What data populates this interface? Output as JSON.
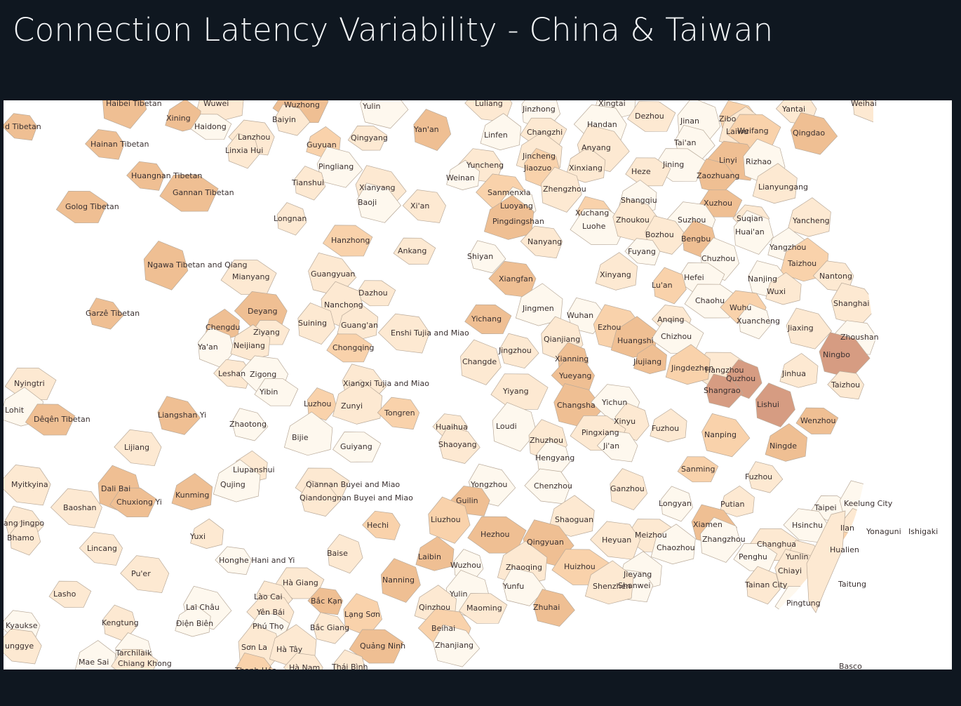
{
  "header": {
    "title": "Connection Latency Variability - China & Taiwan"
  },
  "map": {
    "colors": {
      "sea": "#ffffff",
      "none": "#fef8ee",
      "low": "#fde9d2",
      "mid": "#f9d2ab",
      "high": "#efbf93",
      "max": "#d69c82",
      "border": "#b9aa9a"
    },
    "labels": [
      "d Tibetan",
      "Haibei Tibetan",
      "Wuwei",
      "Wuzhong",
      "Yulin",
      "Luliang",
      "Jinzhong",
      "Xingtai",
      "Dezhou",
      "Zibo",
      "Yantai",
      "Weihai",
      "Xining",
      "Haidong",
      "Baiyin",
      "Handan",
      "Jinan",
      "Laiwu",
      "Weifang",
      "Qingdao",
      "Lanzhou",
      "Yan'an",
      "Linfen",
      "Changzhi",
      "Tai'an",
      "Hainan Tibetan",
      "Linxia Hui",
      "Guyuan",
      "Qingyang",
      "Anyang",
      "Linyi",
      "Rizhao",
      "Jincheng",
      "Jining",
      "Pingliang",
      "Yuncheng",
      "Jiaozuo",
      "Xinxiang",
      "Heze",
      "Zaozhuang",
      "Huangnan Tibetan",
      "Tianshui",
      "Weinan",
      "Gannan Tibetan",
      "Xianyang",
      "Sanmenxia",
      "Zhengzhou",
      "Lianyungang",
      "Golog Tibetan",
      "Baoji",
      "Xi'an",
      "Luoyang",
      "Shangqiu",
      "Xuzhou",
      "Xuchang",
      "Suqian",
      "Longnan",
      "Pingdingshan",
      "Luohe",
      "Zhoukou",
      "Suzhou",
      "Huai'an",
      "Yancheng",
      "Hanzhong",
      "Bozhou",
      "Nanyang",
      "Bengbu",
      "Yangzhou",
      "Ankang",
      "Shiyan",
      "Fuyang",
      "Ngawa Tibetan and Qiang",
      "Taizhou",
      "Mianyang",
      "Guangyuan",
      "Xiangfan",
      "Chuzhou",
      "Xinyang",
      "Hefei",
      "Nanjing",
      "Nantong",
      "Lu'an",
      "Wuxi",
      "Dazhou",
      "Garzê Tibetan",
      "Deyang",
      "Nanchong",
      "Jingmen",
      "Chaohu",
      "Shanghai",
      "Wuhu",
      "Suining",
      "Guang'an",
      "Yichang",
      "Wuhan",
      "Anqing",
      "Xuancheng",
      "Chengdu",
      "Ziyang",
      "Ezhou",
      "Enshi Tujia and Miao",
      "Qianjiang",
      "Huangshi",
      "Chizhou",
      "Jiaxing",
      "Zhoushan",
      "Ya'an",
      "Neijiang",
      "Chongqing",
      "Jingzhou",
      "Leshan",
      "Xianning",
      "Jiujiang",
      "Hangzhou",
      "Ningbo",
      "Zigong",
      "Changde",
      "Jingdezhen",
      "Nyingtri",
      "Xiangxi Tujia and Miao",
      "Yueyang",
      "Quzhou",
      "Jinhua",
      "Yibin",
      "Shangrao",
      "Taizhou",
      "Luzhou",
      "Zunyi",
      "Yiyang",
      "Changsha",
      "Yichun",
      "Lishui",
      "Lohit",
      "Dêqên Tibetan",
      "Liangshan Yi",
      "Tongren",
      "Xinyu",
      "Fuzhou",
      "Wenzhou",
      "Zhaotong",
      "Huaihua",
      "Loudi",
      "Bijie",
      "Pingxiang",
      "Nanping",
      "Lijiang",
      "Zhuzhou",
      "Ningde",
      "Guiyang",
      "Shaoyang",
      "Ji'an",
      "Hengyang",
      "Liupanshui",
      "Sanming",
      "Fuzhou",
      "Myitkyina",
      "Dali Bai",
      "Qujing",
      "Qiannan Buyei and Miao",
      "Yongzhou",
      "Chenzhou",
      "Ganzhou",
      "Kunming",
      "Chuxiong Yi",
      "Qiandongnan Buyei and Miao",
      "Guilin",
      "Longyan",
      "Putian",
      "Taipei",
      "Keelung City",
      "Baoshan",
      "Liuzhou",
      "Shaoguan",
      "Meizhou",
      "Xiamen",
      "Hsinchu",
      "Ilan",
      "Yonaguni",
      "Ishigaki",
      "ang Jingpo",
      "Hechi",
      "Bhamo",
      "Yuxi",
      "Hezhou",
      "Qingyuan",
      "Heyuan",
      "Zhangzhou",
      "Chaozhou",
      "Changhua",
      "Hualien",
      "Lincang",
      "Baise",
      "Laibin",
      "Penghu",
      "Yunlin",
      "Honghe Hani and Yi",
      "Wuzhou",
      "Zhaoqing",
      "Huizhou",
      "Chiayi",
      "Pu'er",
      "Nanning",
      "Jieyang",
      "Hà Giang",
      "Yunfu",
      "Shanwei",
      "Tainan City",
      "Taitung",
      "Lasho",
      "Lào Cai",
      "Bắc Kạn",
      "Yulin",
      "Shenzhen",
      "Pingtung",
      "Lai Châu",
      "Yên Bái",
      "Lạng Sơn",
      "Qinzhou",
      "Maoming",
      "Zhuhai",
      "Kyaukse",
      "Kengtung",
      "Điện Biên",
      "Phú Thọ",
      "Bắc Giang",
      "Beihai",
      "Sơn La",
      "Hà Tây",
      "Quảng Ninh",
      "Zhanjiang",
      "unggye",
      "Tarchilaik",
      "Mae Sai",
      "Chiang Khong",
      "Thanh Hóa",
      "Hà Nam",
      "Thái Bình",
      "Basco"
    ]
  }
}
